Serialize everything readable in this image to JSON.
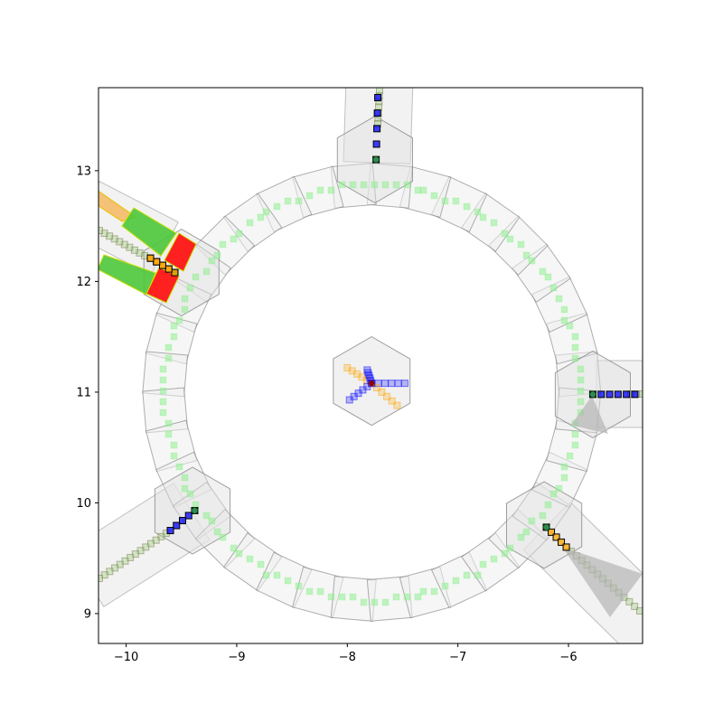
{
  "chart_data": {
    "type": "scatter",
    "title": "",
    "xlabel": "",
    "ylabel": "",
    "xlim": [
      -10.25,
      -5.33
    ],
    "ylim": [
      8.73,
      13.75
    ],
    "grid": false,
    "x_ticks": [
      {
        "value": -10,
        "label": "−10"
      },
      {
        "value": -9,
        "label": "−9"
      },
      {
        "value": -8,
        "label": "−8"
      },
      {
        "value": -7,
        "label": "−7"
      },
      {
        "value": -6,
        "label": "−6"
      }
    ],
    "y_ticks": [
      {
        "value": 9,
        "label": "9"
      },
      {
        "value": 10,
        "label": "10"
      },
      {
        "value": 11,
        "label": "11"
      },
      {
        "value": 12,
        "label": "12"
      },
      {
        "value": 13,
        "label": "13"
      }
    ],
    "ring": {
      "center": [
        -7.78,
        11.0
      ],
      "inner_radius": 1.72,
      "outer_radius": 2.03,
      "path_radius": 1.88,
      "tiles": 36
    },
    "center_hub": {
      "center": [
        -7.78,
        11.1
      ],
      "radius": 0.4
    },
    "hex_nodes": [
      {
        "name": "north",
        "center": [
          -7.75,
          13.1
        ]
      },
      {
        "name": "east",
        "center": [
          -5.78,
          10.98
        ]
      },
      {
        "name": "southeast",
        "center": [
          -6.22,
          9.8
        ]
      },
      {
        "name": "southwest",
        "center": [
          -9.4,
          9.93
        ]
      },
      {
        "name": "northwest",
        "center": [
          -9.5,
          12.08
        ]
      }
    ],
    "spokes": [
      {
        "name": "north",
        "from": [
          -7.74,
          13.1
        ],
        "to": [
          -7.72,
          13.8
        ],
        "color": "#0000ff",
        "count": 6
      },
      {
        "name": "east",
        "from": [
          -5.78,
          10.98
        ],
        "to": [
          -5.4,
          10.98
        ],
        "color": "#0000ff",
        "count": 6
      },
      {
        "name": "southeast",
        "from": [
          -6.2,
          9.78
        ],
        "to": [
          -6.02,
          9.6
        ],
        "color": "#ffa500",
        "count": 5
      },
      {
        "name": "southwest",
        "from": [
          -9.38,
          9.93
        ],
        "to": [
          -9.6,
          9.75
        ],
        "color": "#0000ff",
        "count": 5
      },
      {
        "name": "northwest",
        "from": [
          -9.56,
          12.08
        ],
        "to": [
          -9.78,
          12.21
        ],
        "color": "#ffa500",
        "count": 5
      }
    ],
    "hub_arms": [
      {
        "from": [
          -7.78,
          11.08
        ],
        "to": [
          -8.0,
          11.22
        ],
        "color": "#ffa500"
      },
      {
        "from": [
          -7.78,
          11.08
        ],
        "to": [
          -7.48,
          11.08
        ],
        "color": "#0000ff"
      },
      {
        "from": [
          -7.78,
          11.08
        ],
        "to": [
          -7.98,
          10.93
        ],
        "color": "#0000ff"
      },
      {
        "from": [
          -7.78,
          11.08
        ],
        "to": [
          -7.55,
          10.88
        ],
        "color": "#ffa500"
      },
      {
        "from": [
          -7.78,
          11.08
        ],
        "to": [
          -7.82,
          11.2
        ],
        "color": "#0000ff"
      }
    ],
    "highlight": {
      "red_boxes": 2,
      "green_beams": 2,
      "orange_beam": 1
    }
  }
}
